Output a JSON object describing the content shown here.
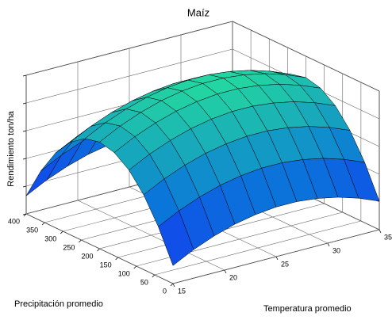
{
  "chart_data": {
    "type": "surface",
    "title": "Maíz",
    "xlabel": "Temperatura promedio",
    "ylabel": "Precipitación promedio",
    "zlabel": "Rendimiento ton/ha",
    "x": [
      15,
      17,
      19,
      21,
      23,
      25,
      27,
      29,
      31,
      33,
      35
    ],
    "y": [
      0,
      40,
      80,
      120,
      160,
      200,
      240,
      280,
      320,
      360,
      400
    ],
    "z": [
      [
        0.65,
        1.03,
        1.33,
        1.56,
        1.71,
        1.79,
        1.79,
        1.71,
        1.56,
        1.33,
        1.03
      ],
      [
        1.8,
        2.18,
        2.48,
        2.71,
        2.86,
        2.94,
        2.94,
        2.86,
        2.71,
        2.48,
        2.18
      ],
      [
        2.7,
        3.08,
        3.38,
        3.61,
        3.76,
        3.84,
        3.84,
        3.76,
        3.61,
        3.38,
        3.08
      ],
      [
        3.34,
        3.72,
        4.02,
        4.25,
        4.4,
        4.48,
        4.48,
        4.4,
        4.25,
        4.02,
        3.72
      ],
      [
        3.72,
        4.1,
        4.4,
        4.63,
        4.78,
        4.86,
        4.86,
        4.78,
        4.63,
        4.4,
        4.1
      ],
      [
        3.85,
        4.23,
        4.53,
        4.76,
        4.91,
        4.99,
        4.99,
        4.91,
        4.76,
        4.53,
        4.23
      ],
      [
        3.72,
        4.1,
        4.4,
        4.63,
        4.78,
        4.86,
        4.86,
        4.78,
        4.63,
        4.4,
        4.1
      ],
      [
        3.34,
        3.72,
        4.02,
        4.25,
        4.4,
        4.48,
        4.48,
        4.4,
        4.25,
        4.02,
        3.72
      ],
      [
        2.7,
        3.08,
        3.38,
        3.61,
        3.76,
        3.84,
        3.84,
        3.76,
        3.61,
        3.38,
        3.08
      ],
      [
        1.8,
        2.18,
        2.48,
        2.71,
        2.86,
        2.94,
        2.94,
        2.86,
        2.71,
        2.48,
        2.18
      ],
      [
        0.65,
        1.03,
        1.33,
        1.56,
        1.71,
        1.79,
        1.79,
        1.71,
        1.56,
        1.33,
        1.03
      ]
    ],
    "xlim": [
      15,
      35
    ],
    "ylim": [
      0,
      400
    ],
    "zlim": [
      0,
      5
    ],
    "xticks": [
      15,
      20,
      25,
      30,
      35
    ],
    "yticks": [
      0,
      50,
      100,
      150,
      200,
      250,
      300,
      350,
      400
    ],
    "zticks": [
      0,
      1,
      2,
      3,
      4,
      5
    ],
    "grid": true,
    "colormap": [
      "#1a1aff",
      "#0a78d8",
      "#24d8a0"
    ],
    "edgecolor": "#000000"
  }
}
